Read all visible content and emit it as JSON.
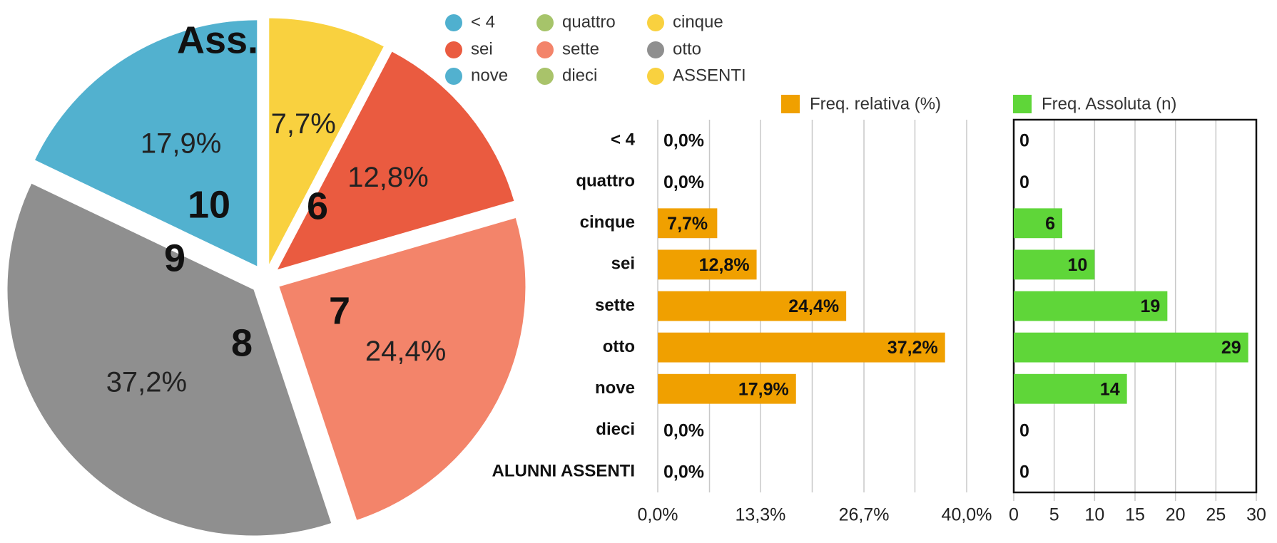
{
  "chart_data": [
    {
      "type": "pie",
      "categories": [
        "< 4",
        "quattro",
        "cinque",
        "sei",
        "sette",
        "otto",
        "nove",
        "dieci",
        "ASSENTI"
      ],
      "values": [
        0,
        0,
        7.7,
        12.8,
        24.4,
        37.2,
        17.9,
        0,
        0
      ],
      "value_labels": [
        null,
        null,
        "7,7%",
        "12,8%",
        "24,4%",
        "37,2%",
        "17,9%",
        null,
        null
      ],
      "colors": [
        "#4fb0cf",
        "#a6c46a",
        "#f9d13f",
        "#ea5b40",
        "#f3846a",
        "#8f8f8f",
        "#52b1cf",
        "#a9c36a",
        "#f9d13f"
      ],
      "annotations": [
        "Ass.",
        "10",
        "9",
        "8",
        "7",
        "6"
      ]
    },
    {
      "type": "hbar",
      "categories": [
        "< 4",
        "quattro",
        "cinque",
        "sei",
        "sette",
        "otto",
        "nove",
        "dieci",
        "ALUNNI ASSENTI"
      ],
      "series": [
        {
          "name": "Freq. relativa (%)",
          "color": "#f0a000",
          "values": [
            0,
            0,
            7.7,
            12.8,
            24.4,
            37.2,
            17.9,
            0,
            0
          ],
          "value_labels": [
            "0,0%",
            "0,0%",
            "7,7%",
            "12,8%",
            "24,4%",
            "37,2%",
            "17,9%",
            "0,0%",
            "0,0%"
          ]
        }
      ],
      "xlim": [
        0,
        40
      ],
      "xticks": [
        {
          "value": 0,
          "label": "0,0%"
        },
        {
          "value": 13.3,
          "label": "13,3%"
        },
        {
          "value": 26.7,
          "label": "26,7%"
        },
        {
          "value": 40,
          "label": "40,0%"
        }
      ],
      "minor_xticks": [
        6.7,
        20,
        33.3
      ],
      "grid": true
    },
    {
      "type": "hbar",
      "series": [
        {
          "name": "Freq. Assoluta (n)",
          "color": "#5fd639",
          "values": [
            0,
            0,
            6,
            10,
            19,
            29,
            14,
            0,
            0
          ]
        }
      ],
      "xlim": [
        0,
        30
      ],
      "xticks": [
        0,
        5,
        10,
        15,
        20,
        25,
        30
      ],
      "grid": true,
      "frame": true
    }
  ]
}
